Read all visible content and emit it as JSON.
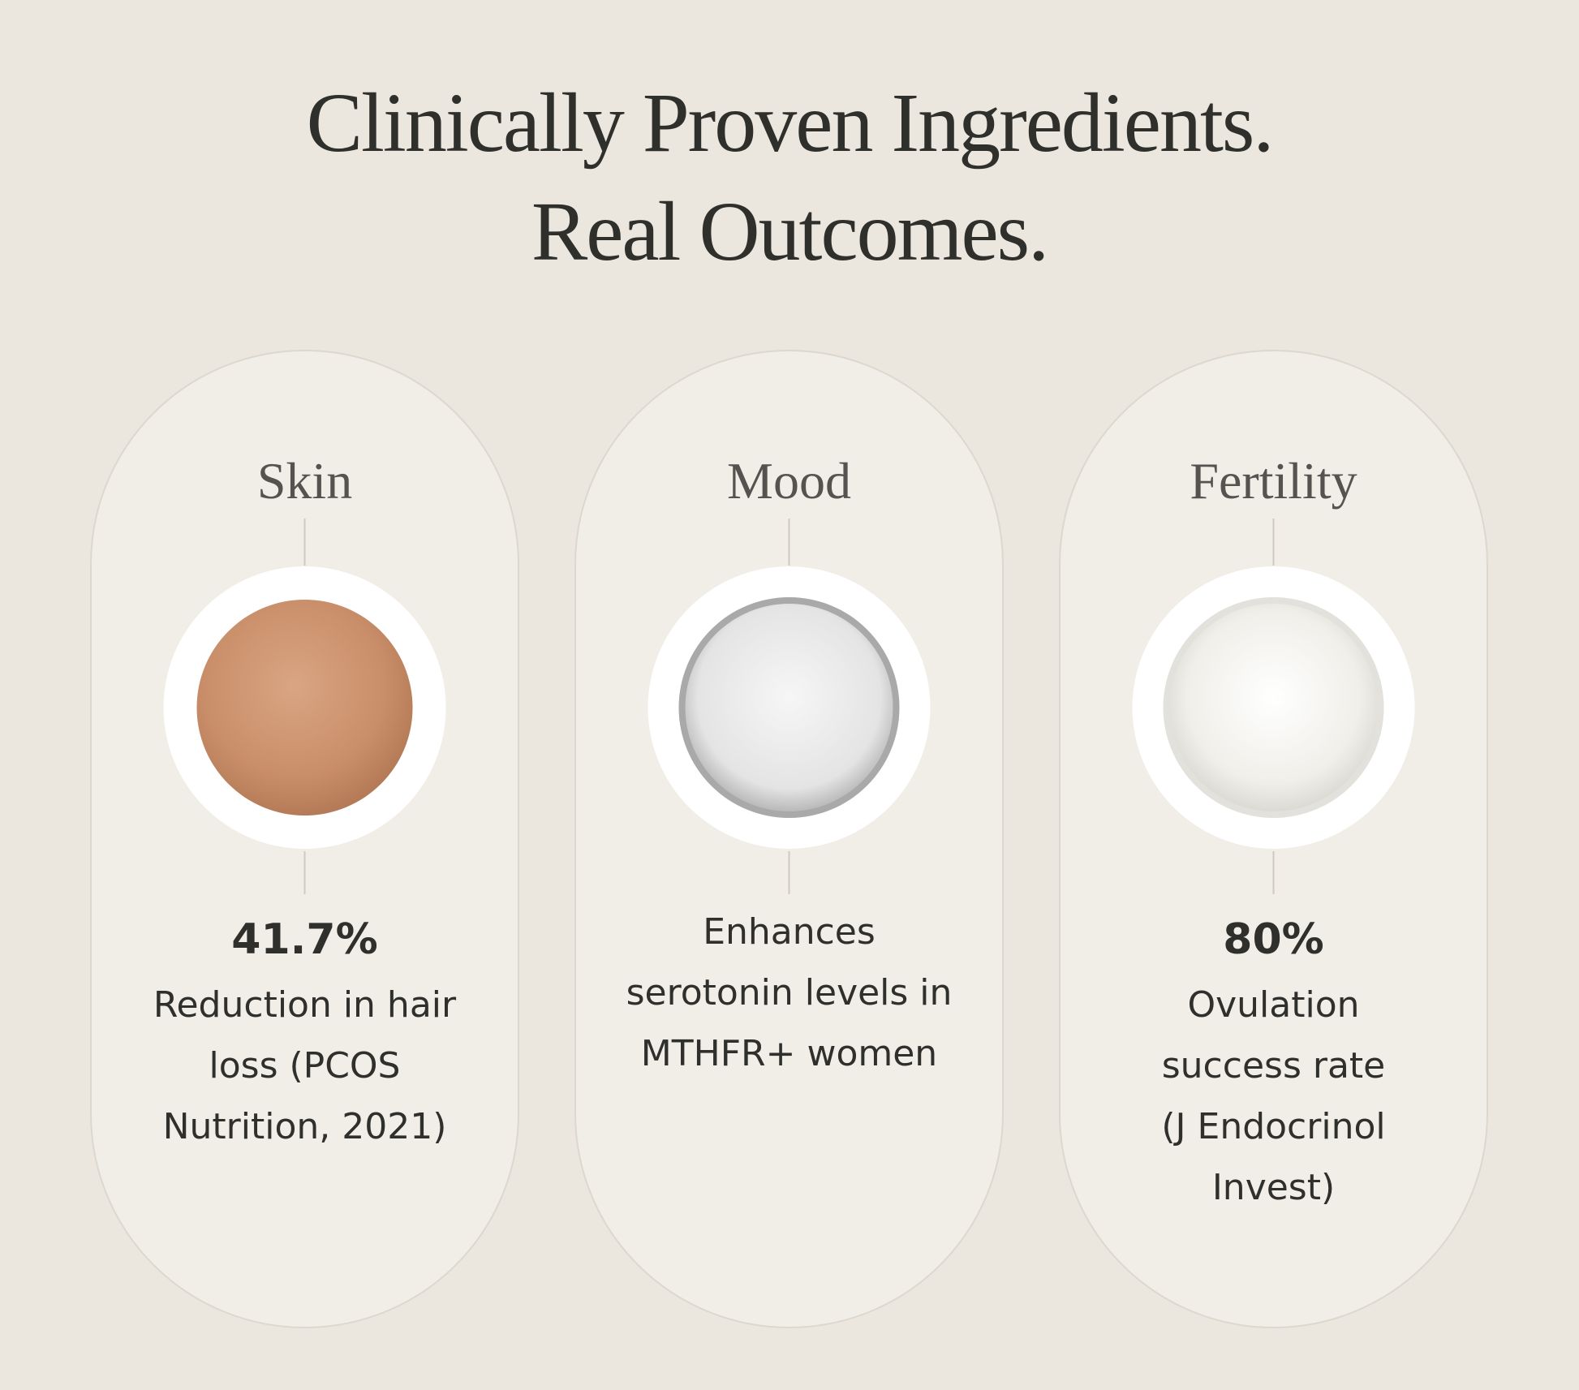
{
  "header": {
    "title": [
      "Clinically Proven Ingredients.",
      "Real Outcomes."
    ]
  },
  "cards": [
    {
      "label": "Skin",
      "stat": "41.7%",
      "description": [
        "Reduction in hair",
        "loss (PCOS",
        "Nutrition, 2021)"
      ]
    },
    {
      "label": "Mood",
      "description": [
        "Enhances",
        "serotonin levels in",
        "MTHFR+ women"
      ]
    },
    {
      "label": "Fertility",
      "stat": "80%",
      "description": [
        "Ovulation",
        "success rate",
        "(J Endocrinol",
        "Invest)"
      ]
    }
  ]
}
